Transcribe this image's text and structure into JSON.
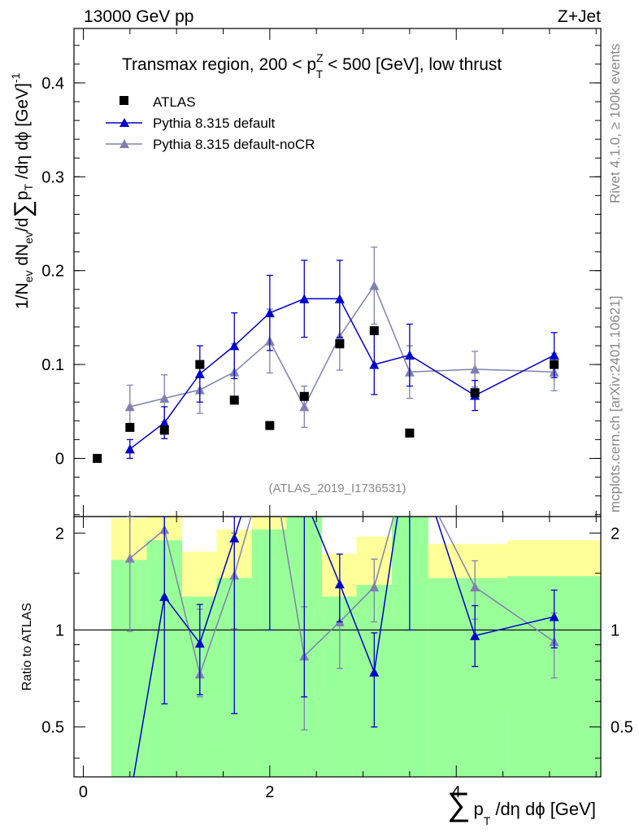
{
  "header": {
    "left": "13000 GeV pp",
    "right": "Z+Jet"
  },
  "sidebar": {
    "rivet": "Rivet 4.1.0, ≥ 100k events",
    "mcplots": "mcplots.cern.ch [arXiv:2401.10621]"
  },
  "chart_data": {
    "type": "scatter",
    "title_main": "Transmax region, 200 < p",
    "title_sup": "Z",
    "title_sub": "T",
    "title_rest": " < 500 [GeV], low thrust",
    "analysis_id": "(ATLAS_2019_I1736531)",
    "ylabel_main": "1/N_ev dN_ev/d∑p_T/dη dϕ [GeV]^-1",
    "xlabel": "∑ p_T /dη dϕ [GeV]",
    "xlabel_sum": "∑",
    "xlabel_p": "p",
    "xlabel_sub": "T",
    "xlabel_rest": "/dη dϕ [GeV]",
    "ylabel_ratio": "Ratio to ATLAS",
    "xlim": [
      -0.1,
      5.55
    ],
    "ylim_main": [
      -0.062,
      0.458
    ],
    "ylim_ratio": [
      0.35,
      2.25
    ],
    "xticks": [
      "0",
      "2",
      "4"
    ],
    "xtick_values": [
      0,
      2,
      4
    ],
    "yticks_main": [
      "0",
      "0.1",
      "0.2",
      "0.3",
      "0.4"
    ],
    "ytick_values_main": [
      0,
      0.1,
      0.2,
      0.3,
      0.4
    ],
    "yticks_ratio": [
      "0.5",
      "1",
      "2"
    ],
    "ytick_values_ratio": [
      0.5,
      1,
      2
    ],
    "legend": [
      "ATLAS",
      "Pythia 8.315 default",
      "Pythia 8.315 default-noCR"
    ],
    "series": [
      {
        "name": "ATLAS",
        "color": "#000000",
        "marker": "square",
        "x": [
          0.15,
          0.5,
          0.87,
          1.25,
          1.62,
          2.0,
          2.37,
          2.75,
          3.12,
          3.5,
          4.2,
          5.05
        ],
        "values": [
          0.0,
          0.033,
          0.03,
          0.1,
          0.062,
          0.035,
          0.066,
          0.122,
          0.136,
          0.027,
          0.07,
          0.1
        ]
      },
      {
        "name": "Pythia 8.315 default",
        "color": "#0000cc",
        "marker": "triangle",
        "x": [
          0.5,
          0.87,
          1.25,
          1.62,
          2.0,
          2.37,
          2.75,
          3.12,
          3.5,
          4.2,
          5.05
        ],
        "values": [
          0.01,
          0.038,
          0.09,
          0.12,
          0.155,
          0.17,
          0.17,
          0.1,
          0.11,
          0.067,
          0.11
        ],
        "err": [
          0.01,
          0.017,
          0.03,
          0.035,
          0.04,
          0.041,
          0.041,
          0.032,
          0.033,
          0.016,
          0.024
        ]
      },
      {
        "name": "Pythia 8.315 default-noCR",
        "color": "#8080b0",
        "marker": "triangle",
        "x": [
          0.5,
          0.87,
          1.25,
          1.62,
          2.0,
          2.37,
          2.75,
          3.12,
          3.5,
          4.2,
          5.05
        ],
        "values": [
          0.055,
          0.064,
          0.073,
          0.092,
          0.125,
          0.055,
          0.13,
          0.184,
          0.092,
          0.095,
          0.092
        ],
        "err": [
          0.023,
          0.025,
          0.025,
          0.03,
          0.034,
          0.022,
          0.036,
          0.041,
          0.028,
          0.019,
          0.02
        ]
      }
    ],
    "ratio_series": [
      {
        "name": "Pythia 8.315 default",
        "x": [
          0.5,
          0.87,
          1.25,
          1.62,
          2.0,
          2.37,
          2.75,
          3.12,
          3.5,
          4.2,
          5.05
        ],
        "values": [
          0.3,
          1.27,
          0.91,
          1.93,
          4.4,
          2.58,
          1.39,
          0.74,
          4.0,
          0.96,
          1.1
        ],
        "err_lo": [
          0.2,
          0.59,
          0.63,
          0.55,
          1.0,
          0.62,
          1.06,
          0.5,
          1.0,
          0.77,
          0.88
        ],
        "err_hi": [
          0.35,
          2.25,
          1.2,
          2.25,
          5.0,
          3.2,
          1.72,
          0.98,
          5.0,
          1.19,
          1.33
        ]
      },
      {
        "name": "Pythia 8.315 default-noCR",
        "x": [
          0.5,
          0.87,
          1.25,
          1.62,
          2.0,
          2.37,
          2.75,
          3.12,
          3.5,
          4.2,
          5.05
        ],
        "values": [
          1.67,
          2.05,
          0.73,
          1.48,
          3.6,
          0.83,
          1.06,
          1.36,
          3.4,
          1.36,
          0.92
        ],
        "err_lo": [
          0.99,
          1.27,
          0.62,
          1.01,
          2.6,
          0.49,
          0.76,
          1.06,
          2.4,
          1.08,
          0.71
        ],
        "err_hi": [
          2.25,
          2.25,
          1.16,
          2.0,
          4.6,
          1.18,
          1.36,
          1.66,
          4.4,
          1.64,
          1.13
        ]
      }
    ],
    "ratio_bands": {
      "x_edges": [
        0.3,
        0.68,
        1.06,
        1.43,
        1.81,
        2.18,
        2.56,
        2.93,
        3.31,
        3.7,
        4.55,
        5.55
      ],
      "green_lo": [
        0.35,
        0.35,
        0.35,
        0.35,
        0.35,
        0.35,
        0.35,
        0.35,
        0.35,
        0.35,
        0.35
      ],
      "green_hi": [
        1.65,
        1.9,
        1.27,
        1.45,
        2.05,
        2.25,
        1.27,
        1.38,
        2.25,
        1.45,
        1.47
      ],
      "yellow_lo": [
        0.35,
        0.35,
        0.65,
        0.45,
        0.35,
        0.35,
        0.67,
        0.5,
        0.35,
        0.58,
        0.56
      ],
      "yellow_hi": [
        2.22,
        2.25,
        1.75,
        2.05,
        2.25,
        2.25,
        1.72,
        1.95,
        2.25,
        1.85,
        1.9
      ]
    }
  }
}
